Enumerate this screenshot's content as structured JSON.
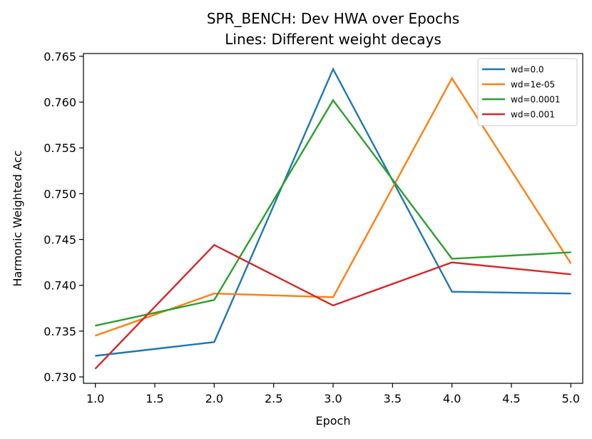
{
  "chart_data": {
    "type": "line",
    "title": "SPR_BENCH: Dev HWA over Epochs",
    "subtitle": "Lines: Different weight decays",
    "xlabel": "Epoch",
    "ylabel": "Harmonic Weighted Acc",
    "xlim": [
      0.9,
      5.1
    ],
    "ylim": [
      0.7293,
      0.7653
    ],
    "xticks": [
      "1.0",
      "1.5",
      "2.0",
      "2.5",
      "3.0",
      "3.5",
      "4.0",
      "4.5",
      "5.0"
    ],
    "yticks": [
      "0.730",
      "0.735",
      "0.740",
      "0.745",
      "0.750",
      "0.755",
      "0.760",
      "0.765"
    ],
    "grid": false,
    "legend_position": "top-right",
    "x": [
      1,
      2,
      3,
      4,
      5
    ],
    "series": [
      {
        "name": "wd=0.0",
        "color": "#1f77b4",
        "values": [
          0.7323,
          0.7338,
          0.7636,
          0.7393,
          0.7391
        ]
      },
      {
        "name": "wd=1e-05",
        "color": "#ff7f0e",
        "values": [
          0.7345,
          0.7391,
          0.7387,
          0.7626,
          0.7424
        ]
      },
      {
        "name": "wd=0.0001",
        "color": "#2ca02c",
        "values": [
          0.7356,
          0.7384,
          0.7602,
          0.7429,
          0.7436
        ]
      },
      {
        "name": "wd=0.001",
        "color": "#d62728",
        "values": [
          0.7309,
          0.7444,
          0.7378,
          0.7425,
          0.7412
        ]
      }
    ]
  }
}
